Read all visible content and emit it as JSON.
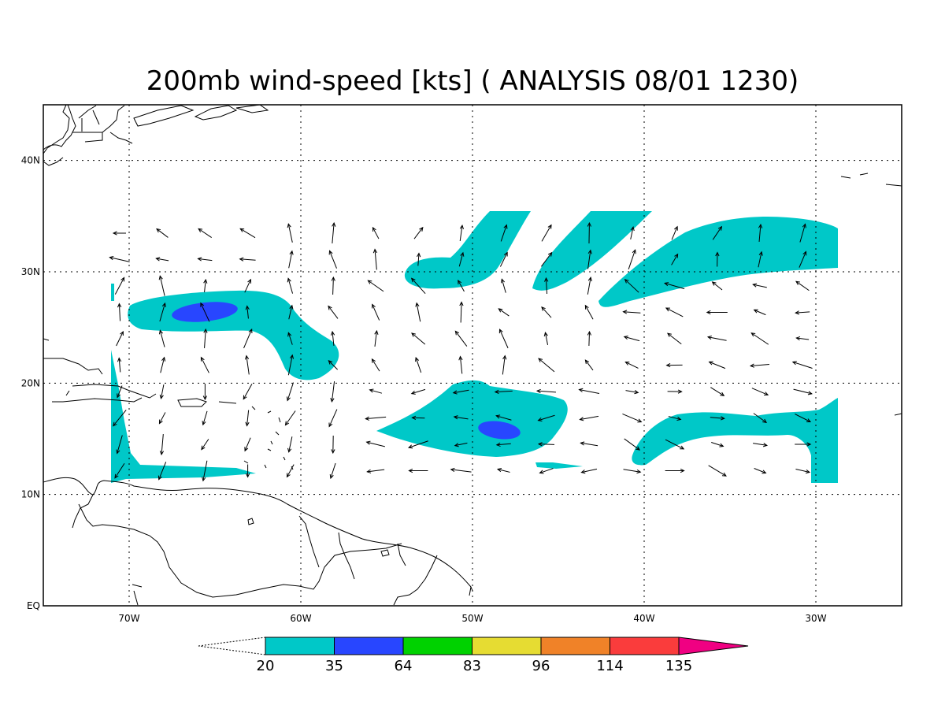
{
  "title": "200mb wind-speed [kts] ( ANALYSIS 08/01 1230)",
  "map": {
    "lon_range": [
      -75,
      -25
    ],
    "lat_range": [
      0,
      45
    ],
    "lon_ticks": [
      {
        "lon": -70,
        "label": "70W"
      },
      {
        "lon": -60,
        "label": "60W"
      },
      {
        "lon": -50,
        "label": "50W"
      },
      {
        "lon": -40,
        "label": "40W"
      },
      {
        "lon": -30,
        "label": "30W"
      }
    ],
    "lat_ticks": [
      {
        "lat": 0,
        "label": "EQ"
      },
      {
        "lat": 10,
        "label": "10N"
      },
      {
        "lat": 20,
        "label": "20N"
      },
      {
        "lat": 30,
        "label": "30N"
      },
      {
        "lat": 40,
        "label": "40N"
      }
    ],
    "grid": true
  },
  "colorbar": {
    "levels": [
      "20",
      "35",
      "64",
      "83",
      "96",
      "114",
      "135"
    ],
    "colors": [
      "#00c8c8",
      "#2846ff",
      "#00d200",
      "#e6dc32",
      "#f08228",
      "#fa3c3c",
      "#f00082"
    ]
  },
  "chart_data": {
    "type": "wind-speed contour map",
    "units": "kts",
    "level": "200mb",
    "shaded_regions": [
      {
        "band": "20-35",
        "description": "jet streak 63-70W near 26N"
      },
      {
        "band": "35-64",
        "center": {
          "lon": -65,
          "lat": 26
        }
      },
      {
        "band": "20-35",
        "description": "region 44-55W near 16N"
      },
      {
        "band": "35-64",
        "center": {
          "lon": -48.3,
          "lat": 15.8
        }
      },
      {
        "band": "20-35",
        "description": "band 29-41W near 15N"
      },
      {
        "band": "20-35",
        "description": "band 29-42W near 32N"
      }
    ]
  }
}
